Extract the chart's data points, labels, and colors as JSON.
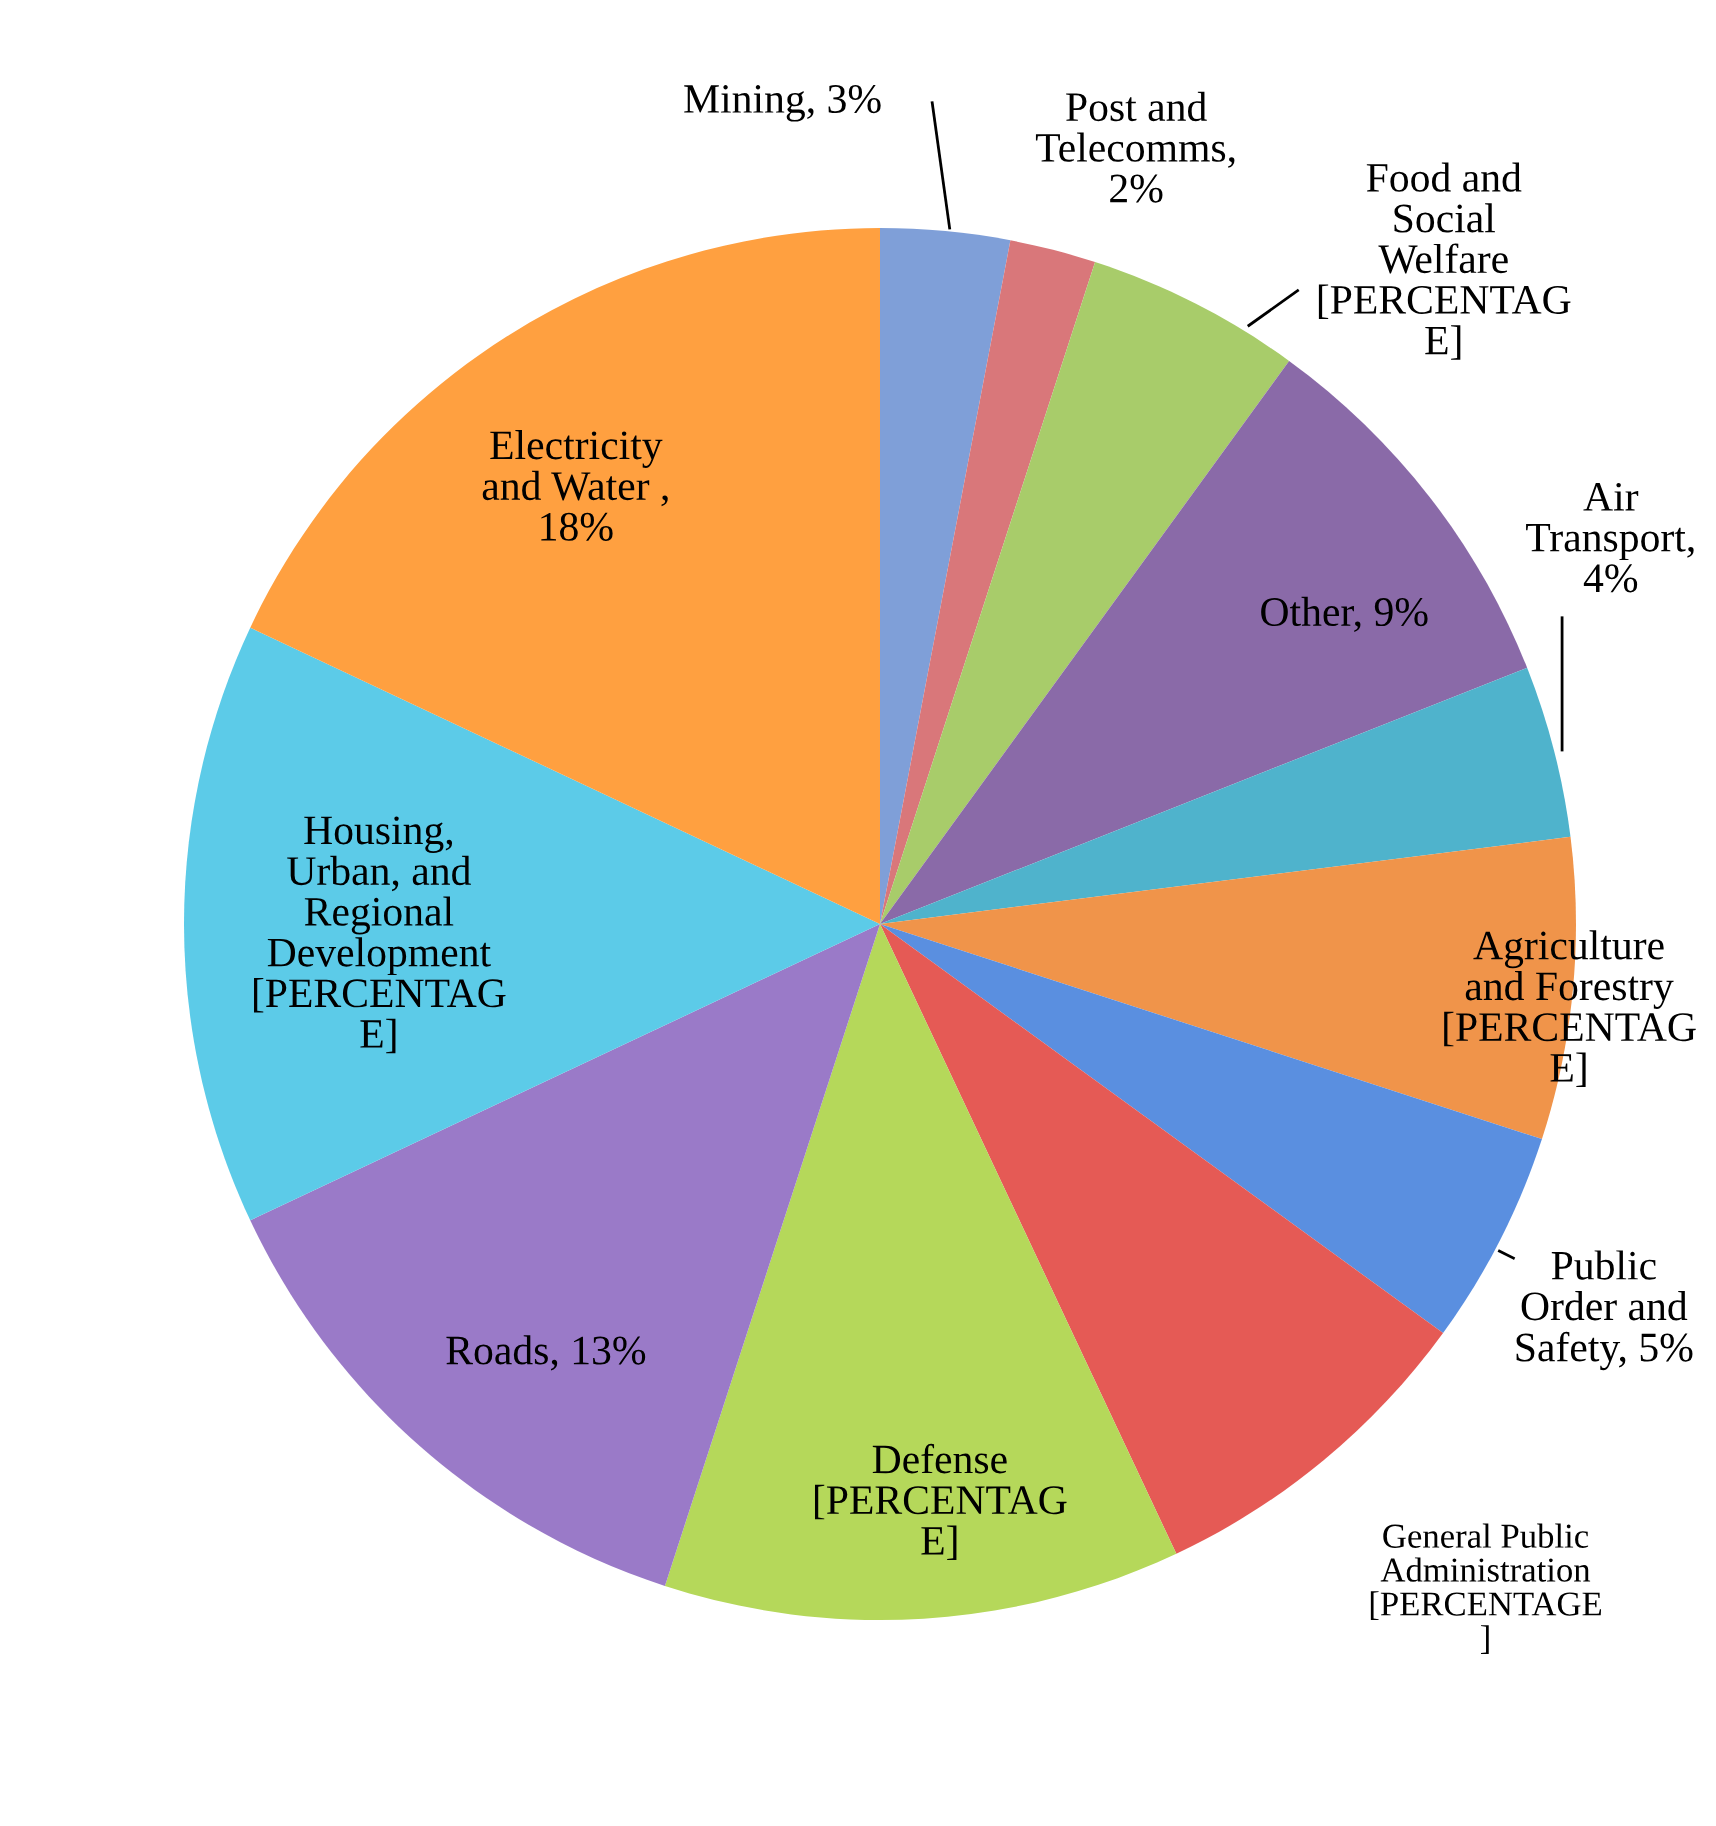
{
  "chart_data": {
    "type": "pie",
    "categories": [
      "Mining, 3%",
      "Post and\nTelecomms,\n2%",
      "Food and\nSocial\nWelfare\n[PERCENTAG\nE]",
      "Other, 9%",
      "Air\nTransport,\n4%",
      "Agriculture\nand Forestry\n[PERCENTAG\nE]",
      "Public\nOrder and\nSafety, 5%",
      "General Public\nAdministration\n[PERCENTAGE\n]",
      "Defense\n[PERCENTAG\nE]",
      "Roads, 13%",
      "Housing,\nUrban, and\nRegional\nDevelopment\n[PERCENTAG\nE]",
      "Electricity\nand Water ,\n18%"
    ],
    "values": [
      3,
      2,
      5,
      9,
      4,
      7,
      5,
      8,
      12,
      13,
      14,
      18
    ],
    "colors": [
      "#7f9fd8",
      "#d9777a",
      "#a8cc6a",
      "#8a6aa8",
      "#4fb3cc",
      "#f0944a",
      "#5a8fe0",
      "#e55a55",
      "#b5d85a",
      "#9a7ac8",
      "#5ccbe8",
      "#ffa040"
    ],
    "legend": false
  }
}
